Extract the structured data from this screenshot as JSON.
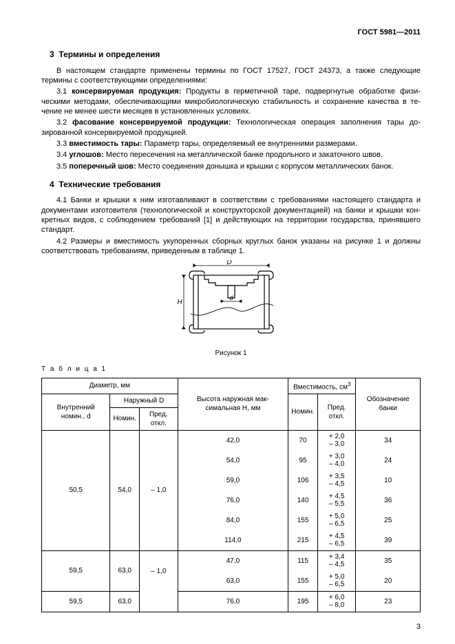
{
  "header": {
    "doc_id": "ГОСТ 5981—2011"
  },
  "section3": {
    "number": "3",
    "title": "Термины и определения",
    "intro": "В настоящем стандарте применены термины по ГОСТ 17527, ГОСТ 24373, а также следующие термины с соответствующими определениями:",
    "items": [
      {
        "num": "3.1",
        "term": "консервируемая продукция:",
        "def": "Продукты в герметичной таре, подвергнутые обработке физи­ческими методами, обеспечивающими микробиологическую стабильность и сохранение качества в те­чение не менее шести месяцев в установленных условиях."
      },
      {
        "num": "3.2",
        "term": "фасование консервируемой продукции:",
        "def": "Технологическая операция заполнения тары до­зированной консервируемой продукцией."
      },
      {
        "num": "3.3",
        "term": "вместимость тары:",
        "def": "Параметр тары, определяемый ее внутренними размерами."
      },
      {
        "num": "3.4",
        "term": "углошов:",
        "def": "Место пересечения на металлической банке продольного и закаточного швов."
      },
      {
        "num": "3.5",
        "term": "поперечный шов:",
        "def": "Место соединения донышка и крышки с корпусом металлических банок."
      }
    ]
  },
  "section4": {
    "number": "4",
    "title": "Технические требования",
    "p1": "4.1  Банки и крышки к ним изготавливают в соответствии с требованиями настоящего стандарта и документами изготовителя (технологической и конструкторской документацией) на банки и крышки кон­кретных видов, с соблюдением требований [1] и действующих на территории государства, принявшего стандарт.",
    "p2": "4.2  Размеры и вместимость укупоренных сборных круглых банок указаны на рисунке 1 и должны соответствовать требованиям, приведенным в таблице 1."
  },
  "figure": {
    "caption": "Рисунок 1",
    "labels": {
      "D": "D",
      "d": "d",
      "H": "H"
    }
  },
  "table": {
    "label": "Т а б л и ц а   1",
    "headers": {
      "diam": "Диаметр, мм",
      "outer": "Наружный D",
      "inner": "Внутренний номин., d",
      "nomin": "Номин.",
      "pred": "Пред. откл.",
      "height": "Высота наружная мак­симальная H, мм",
      "cap": "Вместимость, см",
      "cap_sup": "3",
      "design": "Обозначение банки"
    },
    "groups": [
      {
        "d_inner": "50,5",
        "d_outer": "54,0",
        "d_tol": "– 1,0",
        "rows": [
          {
            "h": "42,0",
            "cap": "70",
            "tol": "+ 2,0\n– 3,0",
            "code": "34"
          },
          {
            "h": "54,0",
            "cap": "95",
            "tol": "+ 3,0\n– 4,0",
            "code": "24"
          },
          {
            "h": "59,0",
            "cap": "106",
            "tol": "+ 3,5\n– 4,5",
            "code": "10"
          },
          {
            "h": "76,0",
            "cap": "140",
            "tol": "+ 4,5\n– 5,5",
            "code": "36"
          },
          {
            "h": "84,0",
            "cap": "155",
            "tol": "+ 5,0\n– 6,5",
            "code": "25"
          },
          {
            "h": "114,0",
            "cap": "215",
            "tol": "+ 4,5\n– 6,5",
            "code": "39"
          }
        ]
      },
      {
        "d_inner": "59,5",
        "d_outer": "63,0",
        "d_tol": "– 1,0",
        "tol_open_below": true,
        "rows": [
          {
            "h": "47,0",
            "cap": "115",
            "tol": "+ 3,4\n– 4,5",
            "code": "35"
          },
          {
            "h": "63,0",
            "cap": "155",
            "tol": "+ 5,0\n– 6,5",
            "code": "20"
          }
        ]
      },
      {
        "d_inner": "59,5",
        "d_outer": "63,0",
        "d_tol": "",
        "tol_open_above": true,
        "rows": [
          {
            "h": "76,0",
            "cap": "195",
            "tol": "+ 6,0\n– 8,0",
            "code": "23"
          }
        ]
      }
    ]
  },
  "page_number": "3",
  "style": {
    "figure": {
      "stroke": "#000",
      "stroke_width": 1.2
    }
  }
}
